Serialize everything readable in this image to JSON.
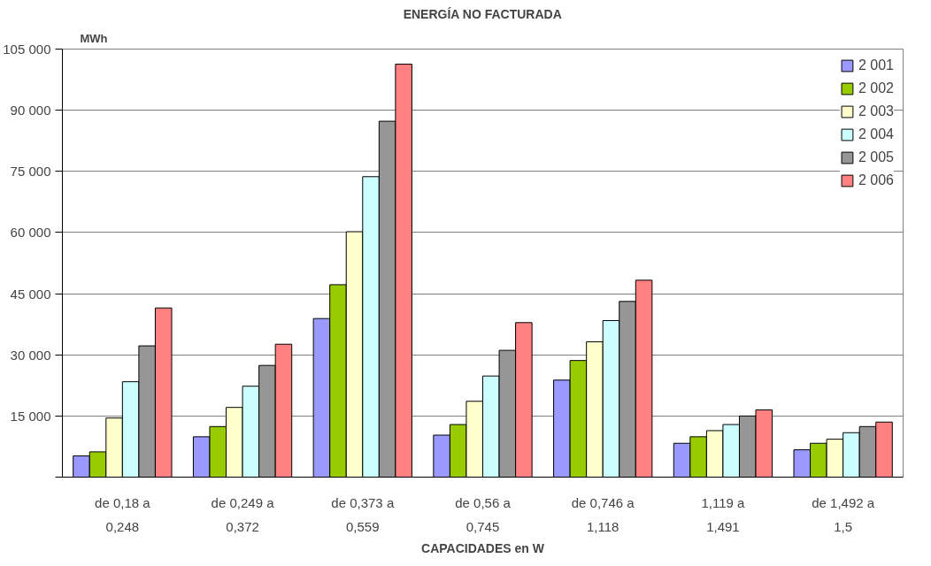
{
  "chart_data": {
    "type": "bar",
    "title": "ENERGÍA NO FACTURADA",
    "ylabel": "MWh",
    "xlabel": "CAPACIDADES en W",
    "categories": [
      "de 0,18 a 0,248",
      "de 0,249 a 0,372",
      "de 0,373 a 0,559",
      "de 0,56 a 0,745",
      "de 0,746 a 1,118",
      "1,119 a 1,491",
      "de 1,492 a 1,5"
    ],
    "series": [
      {
        "name": "2 001",
        "color": "#9999ff",
        "values": [
          5200,
          9900,
          38900,
          10300,
          23800,
          8300,
          6700
        ]
      },
      {
        "name": "2 002",
        "color": "#99cc00",
        "values": [
          6200,
          12400,
          47200,
          12900,
          28600,
          9900,
          8300
        ]
      },
      {
        "name": "2 003",
        "color": "#ffffcc",
        "values": [
          14500,
          17100,
          60200,
          18600,
          33200,
          11400,
          9300
        ]
      },
      {
        "name": "2 004",
        "color": "#ccffff",
        "values": [
          23400,
          22300,
          73700,
          24800,
          38400,
          12900,
          10900
        ]
      },
      {
        "name": "2 005",
        "color": "#969696",
        "values": [
          32200,
          27400,
          87300,
          31100,
          43100,
          15000,
          12400
        ]
      },
      {
        "name": "2 006",
        "color": "#ff8080",
        "values": [
          41500,
          32600,
          101300,
          37900,
          48300,
          16500,
          13500
        ]
      }
    ],
    "ylim": [
      0,
      105000
    ],
    "yticks": [
      {
        "value": 0,
        "label": null
      },
      {
        "value": 15000,
        "label": "15 000"
      },
      {
        "value": 30000,
        "label": "30 000"
      },
      {
        "value": 45000,
        "label": "45 000"
      },
      {
        "value": 60000,
        "label": "60 000"
      },
      {
        "value": 75000,
        "label": "75 000"
      },
      {
        "value": 90000,
        "label": "90 000"
      },
      {
        "value": 105000,
        "label": "105 000"
      }
    ],
    "grid": "y",
    "legend": "top right"
  }
}
